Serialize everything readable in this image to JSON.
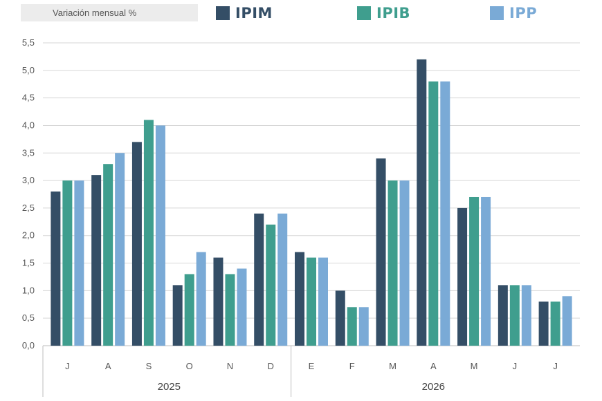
{
  "header": {
    "title_box": "Variación mensual %"
  },
  "legend": [
    {
      "label": "IPIM",
      "color": "#344e66"
    },
    {
      "label": "IPIB",
      "color": "#3f9e8e"
    },
    {
      "label": "IPP",
      "color": "#7aaad6"
    }
  ],
  "chart_data": {
    "type": "bar",
    "title": "",
    "xlabel": "",
    "ylabel": "",
    "ylim": [
      0,
      5.5
    ],
    "yticks": [
      "0,0",
      "0,5",
      "1,0",
      "1,5",
      "2,0",
      "2,5",
      "3,0",
      "3,5",
      "4,0",
      "4,5",
      "5,0",
      "5,5"
    ],
    "grid": true,
    "legend_placement": "top",
    "categories": [
      "J",
      "A",
      "S",
      "O",
      "N",
      "D",
      "E",
      "F",
      "M",
      "A",
      "M",
      "J",
      "J"
    ],
    "groups": [
      {
        "label": "2025",
        "count": 6
      },
      {
        "label": "2026",
        "count": 7
      }
    ],
    "series": [
      {
        "name": "IPIM",
        "color": "#344e66",
        "values": [
          2.8,
          3.1,
          3.7,
          1.1,
          1.6,
          2.4,
          1.7,
          1.0,
          3.4,
          5.2,
          2.5,
          1.1,
          0.8
        ]
      },
      {
        "name": "IPIB",
        "color": "#3f9e8e",
        "values": [
          3.0,
          3.3,
          4.1,
          1.3,
          1.3,
          2.2,
          1.6,
          0.7,
          3.0,
          4.8,
          2.7,
          1.1,
          0.8
        ]
      },
      {
        "name": "IPP",
        "color": "#7aaad6",
        "values": [
          3.0,
          3.5,
          4.0,
          1.7,
          1.4,
          2.4,
          1.6,
          0.7,
          3.0,
          4.8,
          2.7,
          1.1,
          0.9
        ]
      }
    ]
  }
}
